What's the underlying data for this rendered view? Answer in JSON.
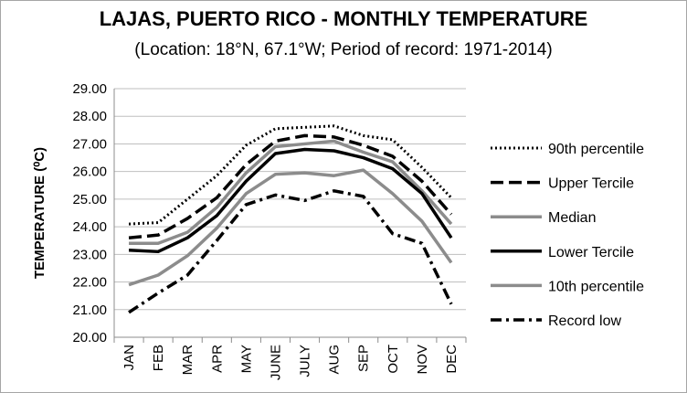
{
  "chart_data": {
    "type": "line",
    "title": "LAJAS, PUERTO RICO - MONTHLY TEMPERATURE",
    "subtitle": "(Location: 18°N, 67.1°W; Period of record: 1971-2014)",
    "ylabel": "TEMPERATURE (⁰C)",
    "xlabel": "",
    "ylim": [
      20,
      29
    ],
    "yticks": [
      "20.00",
      "21.00",
      "22.00",
      "23.00",
      "24.00",
      "25.00",
      "26.00",
      "27.00",
      "28.00",
      "29.00"
    ],
    "categories": [
      "JAN",
      "FEB",
      "MAR",
      "APR",
      "MAY",
      "JUNE",
      "JULY",
      "AUG",
      "SEP",
      "OCT",
      "NOV",
      "DEC"
    ],
    "grid": true,
    "legend_position": "right",
    "series": [
      {
        "name": "90th percentile",
        "color": "#000000",
        "style": "dotted",
        "values": [
          24.1,
          24.15,
          25.0,
          25.85,
          26.95,
          27.55,
          27.6,
          27.65,
          27.3,
          27.15,
          26.15,
          25.05
        ]
      },
      {
        "name": "Upper Tercile",
        "color": "#000000",
        "style": "dashed",
        "values": [
          23.6,
          23.7,
          24.3,
          25.05,
          26.25,
          27.1,
          27.3,
          27.25,
          26.95,
          26.55,
          25.65,
          24.45
        ]
      },
      {
        "name": "Median",
        "color": "#8c8c8c",
        "style": "solid",
        "values": [
          23.4,
          23.4,
          23.8,
          24.7,
          25.95,
          26.9,
          27.0,
          27.1,
          26.7,
          26.35,
          25.3,
          24.1
        ]
      },
      {
        "name": "Lower Tercile",
        "color": "#000000",
        "style": "solid",
        "values": [
          23.15,
          23.1,
          23.6,
          24.4,
          25.65,
          26.65,
          26.8,
          26.75,
          26.5,
          26.1,
          25.2,
          23.6
        ]
      },
      {
        "name": "10th percentile",
        "color": "#8c8c8c",
        "style": "solid",
        "values": [
          21.9,
          22.25,
          22.95,
          23.95,
          25.2,
          25.9,
          25.95,
          25.85,
          26.05,
          25.2,
          24.2,
          22.7
        ]
      },
      {
        "name": "Record low",
        "color": "#000000",
        "style": "dashdot",
        "values": [
          20.9,
          21.6,
          22.25,
          23.5,
          24.8,
          25.15,
          24.95,
          25.3,
          25.1,
          23.75,
          23.4,
          21.2
        ]
      }
    ]
  }
}
